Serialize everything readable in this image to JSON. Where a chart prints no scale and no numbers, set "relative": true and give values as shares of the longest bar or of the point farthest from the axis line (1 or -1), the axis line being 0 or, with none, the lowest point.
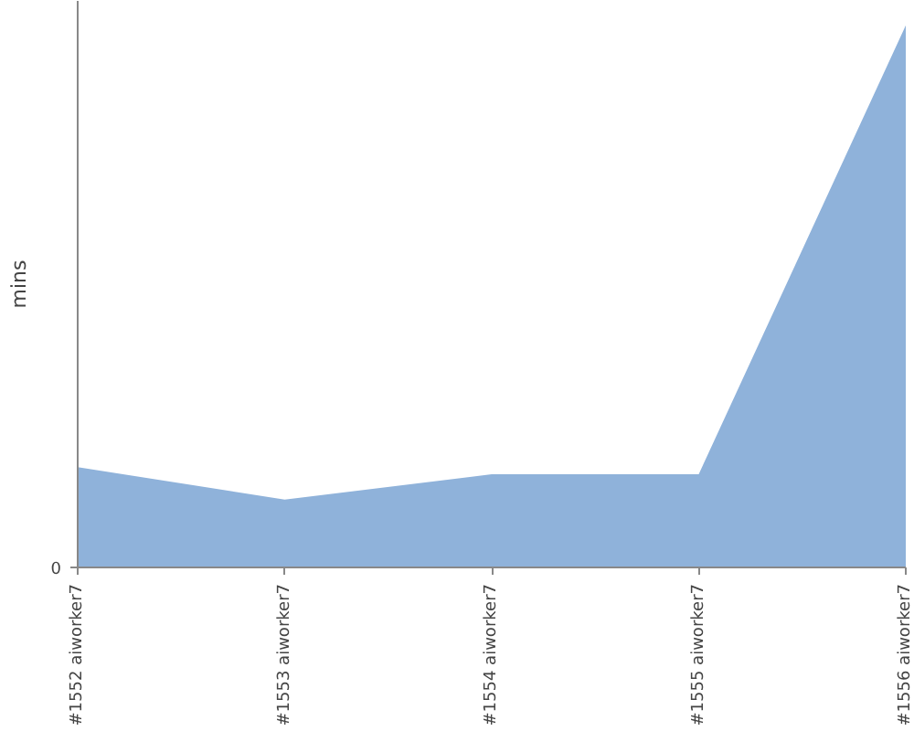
{
  "chart_data": {
    "type": "area",
    "relative": true,
    "ylabel": "mins",
    "categories": [
      "#1552 aiworker7",
      "#1553 aiworker7",
      "#1554 aiworker7",
      "#1555 aiworker7",
      "#1556 aiworker7"
    ],
    "series": [
      {
        "color": "#8fb2da",
        "values": [
          0.185,
          0.125,
          0.172,
          0.172,
          1.0
        ]
      }
    ],
    "annotations": [
      "0"
    ],
    "grid": false
  }
}
